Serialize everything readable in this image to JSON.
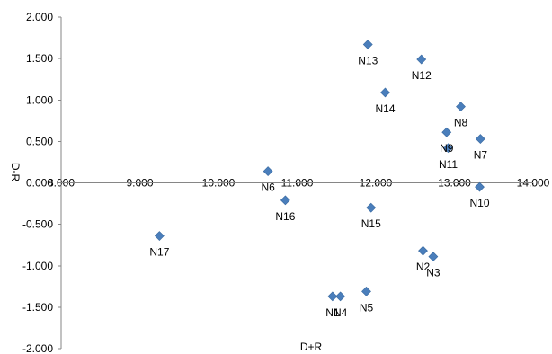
{
  "chart_data": {
    "type": "scatter",
    "title": "",
    "xlabel": "D+R",
    "ylabel": "D-R",
    "xlim": [
      8,
      14
    ],
    "ylim": [
      -2,
      2
    ],
    "grid": false,
    "marker": "diamond",
    "marker_color": "#4a7ebb",
    "x_ticks": [
      "8.000",
      "9.000",
      "10.000",
      "11.000",
      "12.000",
      "13.000",
      "14.000"
    ],
    "y_ticks": [
      "2.000",
      "1.500",
      "1.000",
      "0.500",
      "0.000",
      "-0.500",
      "-1.000",
      "-1.500",
      "-2.000"
    ],
    "points": [
      {
        "label": "N1",
        "x": 11.45,
        "y": -1.37
      },
      {
        "label": "N2",
        "x": 12.6,
        "y": -0.82
      },
      {
        "label": "N3",
        "x": 12.73,
        "y": -0.89
      },
      {
        "label": "N4",
        "x": 11.55,
        "y": -1.37
      },
      {
        "label": "N5",
        "x": 11.88,
        "y": -1.31
      },
      {
        "label": "N6",
        "x": 10.63,
        "y": 0.14
      },
      {
        "label": "N7",
        "x": 13.33,
        "y": 0.53
      },
      {
        "label": "N8",
        "x": 13.08,
        "y": 0.92
      },
      {
        "label": "N9",
        "x": 12.9,
        "y": 0.61
      },
      {
        "label": "N10",
        "x": 13.32,
        "y": -0.05
      },
      {
        "label": "N11",
        "x": 12.92,
        "y": 0.42
      },
      {
        "label": "N12",
        "x": 12.58,
        "y": 1.49
      },
      {
        "label": "N13",
        "x": 11.9,
        "y": 1.67
      },
      {
        "label": "N14",
        "x": 12.12,
        "y": 1.09
      },
      {
        "label": "N15",
        "x": 11.94,
        "y": -0.3
      },
      {
        "label": "N16",
        "x": 10.85,
        "y": -0.21
      },
      {
        "label": "N17",
        "x": 9.25,
        "y": -0.64
      }
    ]
  }
}
